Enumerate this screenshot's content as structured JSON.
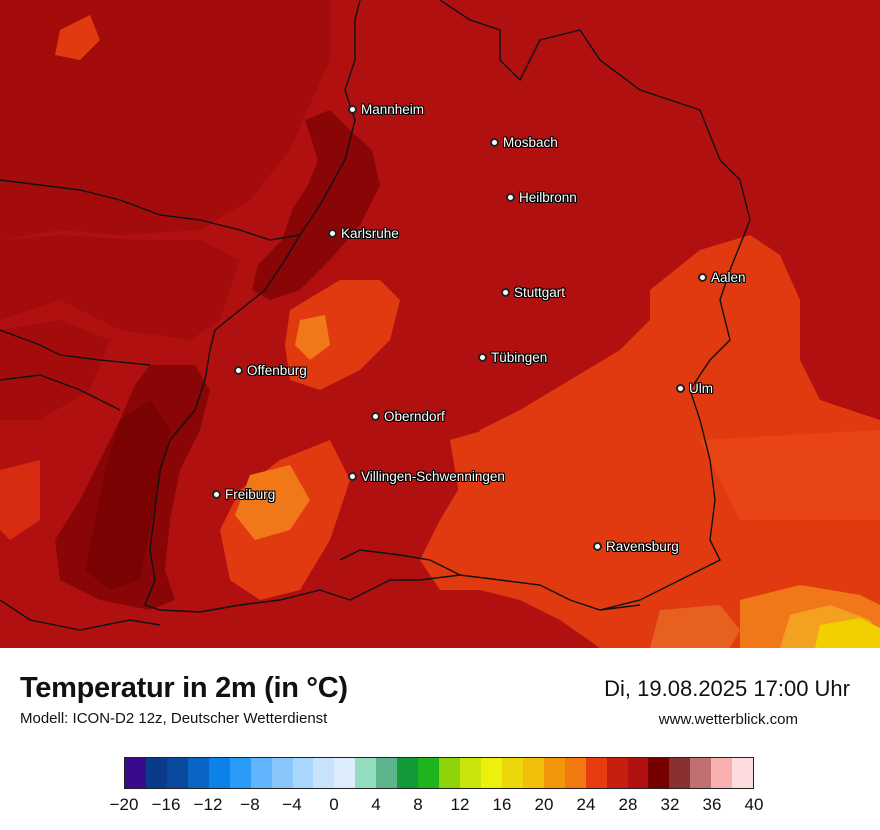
{
  "map": {
    "cities": [
      {
        "name": "Mannheim"
      },
      {
        "name": "Mosbach"
      },
      {
        "name": "Heilbronn"
      },
      {
        "name": "Karlsruhe"
      },
      {
        "name": "Aalen"
      },
      {
        "name": "Stuttgart"
      },
      {
        "name": "Tübingen"
      },
      {
        "name": "Offenburg"
      },
      {
        "name": "Ulm"
      },
      {
        "name": "Oberndorf"
      },
      {
        "name": "Villingen-Schwenningen"
      },
      {
        "name": "Freiburg"
      },
      {
        "name": "Ravensburg"
      }
    ],
    "colors": {
      "base": "#b01010",
      "dark": "#8a0606",
      "darkest": "#6e0000",
      "warm": "#e23a10",
      "orange": "#f07818",
      "amber": "#f4a020",
      "yellow": "#f2d000"
    }
  },
  "footer": {
    "title": "Temperatur in 2m (in °C)",
    "model": "Modell: ICON-D2 12z, Deutscher Wetterdienst",
    "valid_time": "Di, 19.08.2025 17:00 Uhr",
    "url": "www.wetterblick.com"
  },
  "legend": {
    "min": -20,
    "max": 40,
    "colors": [
      "#3a0a8c",
      "#0a3a8a",
      "#0a4a9e",
      "#0a64c4",
      "#0a82e8",
      "#2a9cf8",
      "#62b4fc",
      "#88c6fc",
      "#a8d6fc",
      "#c8e4fc",
      "#dcecfc",
      "#92dcc0",
      "#5cb48c",
      "#129a38",
      "#1eb41e",
      "#8ed20a",
      "#c8e40a",
      "#ecf00a",
      "#ecd80a",
      "#f2c00a",
      "#f2960a",
      "#f27810",
      "#e63c10",
      "#c81e10",
      "#b01010",
      "#760000",
      "#8a3030",
      "#c07070",
      "#f8b0b0",
      "#fcdcdc"
    ],
    "ticks": [
      "−20",
      "−16",
      "−12",
      "−8",
      "−4",
      "0",
      "4",
      "8",
      "12",
      "16",
      "20",
      "24",
      "28",
      "32",
      "36",
      "40"
    ]
  }
}
